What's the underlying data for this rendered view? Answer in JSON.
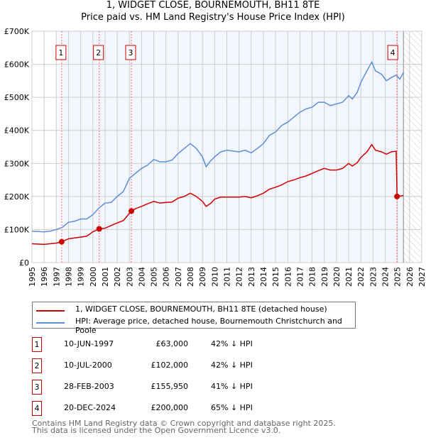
{
  "title": "1, WIDGET CLOSE, BOURNEMOUTH, BH11 8TE",
  "subtitle": "Price paid vs. HM Land Registry's House Price Index (HPI)",
  "chart_data": {
    "type": "line",
    "xlim": [
      1995,
      2027
    ],
    "ylim": [
      0,
      700000
    ],
    "yticks": [
      {
        "v": 0,
        "l": "£0"
      },
      {
        "v": 100000,
        "l": "£100K"
      },
      {
        "v": 200000,
        "l": "£200K"
      },
      {
        "v": 300000,
        "l": "£300K"
      },
      {
        "v": 400000,
        "l": "£400K"
      },
      {
        "v": 500000,
        "l": "£500K"
      },
      {
        "v": 600000,
        "l": "£600K"
      },
      {
        "v": 700000,
        "l": "£700K"
      }
    ],
    "xticks": [
      "1995",
      "1996",
      "1997",
      "1998",
      "1999",
      "2000",
      "2001",
      "2002",
      "2003",
      "2004",
      "2005",
      "2006",
      "2007",
      "2008",
      "2009",
      "2010",
      "2011",
      "2012",
      "2013",
      "2014",
      "2015",
      "2016",
      "2017",
      "2018",
      "2019",
      "2020",
      "2021",
      "2022",
      "2023",
      "2024",
      "2025",
      "2026",
      "2027"
    ],
    "grid": true,
    "forecast_start": 2025.5,
    "series": [
      {
        "name": "1, WIDGET CLOSE, BOURNEMOUTH, BH11 8TE (detached house)",
        "color": "#cc0000",
        "points": [
          [
            1995,
            57
          ],
          [
            1996,
            55
          ],
          [
            1997,
            59
          ],
          [
            1997.44,
            63
          ],
          [
            1998,
            72
          ],
          [
            1999,
            77
          ],
          [
            1999.5,
            80
          ],
          [
            2000,
            93
          ],
          [
            2000.52,
            102
          ],
          [
            2001,
            104
          ],
          [
            2001.5,
            112
          ],
          [
            2002,
            120
          ],
          [
            2002.5,
            127
          ],
          [
            2003.16,
            156
          ],
          [
            2003.5,
            163
          ],
          [
            2004,
            170
          ],
          [
            2004.5,
            178
          ],
          [
            2005,
            185
          ],
          [
            2005.5,
            180
          ],
          [
            2006,
            182
          ],
          [
            2006.5,
            183
          ],
          [
            2007,
            195
          ],
          [
            2007.5,
            200
          ],
          [
            2008,
            210
          ],
          [
            2008.5,
            200
          ],
          [
            2009,
            185
          ],
          [
            2009.3,
            170
          ],
          [
            2009.7,
            180
          ],
          [
            2010,
            192
          ],
          [
            2010.5,
            198
          ],
          [
            2011,
            198
          ],
          [
            2012,
            198
          ],
          [
            2012.5,
            200
          ],
          [
            2013,
            196
          ],
          [
            2013.5,
            202
          ],
          [
            2014,
            210
          ],
          [
            2014.5,
            222
          ],
          [
            2015,
            228
          ],
          [
            2015.5,
            235
          ],
          [
            2016,
            245
          ],
          [
            2016.5,
            250
          ],
          [
            2017,
            257
          ],
          [
            2017.5,
            262
          ],
          [
            2018,
            270
          ],
          [
            2018.5,
            278
          ],
          [
            2019,
            285
          ],
          [
            2019.5,
            280
          ],
          [
            2020,
            280
          ],
          [
            2020.5,
            285
          ],
          [
            2021,
            300
          ],
          [
            2021.3,
            292
          ],
          [
            2021.7,
            302
          ],
          [
            2022,
            318
          ],
          [
            2022.5,
            335
          ],
          [
            2022.9,
            357
          ],
          [
            2023.2,
            340
          ],
          [
            2023.7,
            335
          ],
          [
            2024.1,
            328
          ],
          [
            2024.5,
            335
          ],
          [
            2024.9,
            337
          ],
          [
            2024.97,
            200
          ],
          [
            2025.5,
            203
          ]
        ]
      },
      {
        "name": "HPI: Average price, detached house, Bournemouth Christchurch and Poole",
        "color": "#5b8fd6",
        "points": [
          [
            1995,
            95
          ],
          [
            1996,
            93
          ],
          [
            1996.5,
            95
          ],
          [
            1997,
            100
          ],
          [
            1997.5,
            107
          ],
          [
            1998,
            122
          ],
          [
            1998.5,
            125
          ],
          [
            1999,
            132
          ],
          [
            1999.5,
            132
          ],
          [
            2000,
            145
          ],
          [
            2000.5,
            165
          ],
          [
            2001,
            180
          ],
          [
            2001.5,
            182
          ],
          [
            2002,
            200
          ],
          [
            2002.5,
            215
          ],
          [
            2003,
            255
          ],
          [
            2003.5,
            270
          ],
          [
            2004,
            285
          ],
          [
            2004.5,
            295
          ],
          [
            2005,
            312
          ],
          [
            2005.5,
            305
          ],
          [
            2006,
            305
          ],
          [
            2006.5,
            310
          ],
          [
            2007,
            330
          ],
          [
            2007.5,
            345
          ],
          [
            2008,
            360
          ],
          [
            2008.5,
            345
          ],
          [
            2009,
            320
          ],
          [
            2009.3,
            290
          ],
          [
            2009.6,
            305
          ],
          [
            2010,
            320
          ],
          [
            2010.5,
            335
          ],
          [
            2011,
            340
          ],
          [
            2012,
            335
          ],
          [
            2012.5,
            340
          ],
          [
            2013,
            332
          ],
          [
            2013.5,
            345
          ],
          [
            2014,
            360
          ],
          [
            2014.5,
            385
          ],
          [
            2015,
            395
          ],
          [
            2015.5,
            415
          ],
          [
            2016,
            425
          ],
          [
            2016.5,
            440
          ],
          [
            2017,
            455
          ],
          [
            2017.5,
            465
          ],
          [
            2018,
            470
          ],
          [
            2018.5,
            485
          ],
          [
            2019,
            485
          ],
          [
            2019.5,
            475
          ],
          [
            2020,
            480
          ],
          [
            2020.5,
            485
          ],
          [
            2021,
            505
          ],
          [
            2021.3,
            495
          ],
          [
            2021.7,
            515
          ],
          [
            2022,
            545
          ],
          [
            2022.5,
            580
          ],
          [
            2022.9,
            607
          ],
          [
            2023.2,
            580
          ],
          [
            2023.7,
            570
          ],
          [
            2024.1,
            550
          ],
          [
            2024.5,
            560
          ],
          [
            2024.9,
            567
          ],
          [
            2025.2,
            555
          ],
          [
            2025.5,
            575
          ]
        ]
      }
    ],
    "transactions": [
      {
        "n": "1",
        "x": 1997.44,
        "value": 63000,
        "date": "10-JUN-1997",
        "price": "£63,000",
        "hpi": "42% ↓ HPI"
      },
      {
        "n": "2",
        "x": 2000.52,
        "value": 102000,
        "date": "10-JUL-2000",
        "price": "£102,000",
        "hpi": "42% ↓ HPI"
      },
      {
        "n": "3",
        "x": 2003.16,
        "value": 155950,
        "date": "28-FEB-2003",
        "price": "£155,950",
        "hpi": "41% ↓ HPI"
      },
      {
        "n": "4",
        "x": 2024.97,
        "value": 200000,
        "date": "20-DEC-2024",
        "price": "£200,000",
        "hpi": "65% ↓ HPI"
      }
    ]
  },
  "footer": [
    "Contains HM Land Registry data © Crown copyright and database right 2025.",
    "This data is licensed under the Open Government Licence v3.0."
  ]
}
